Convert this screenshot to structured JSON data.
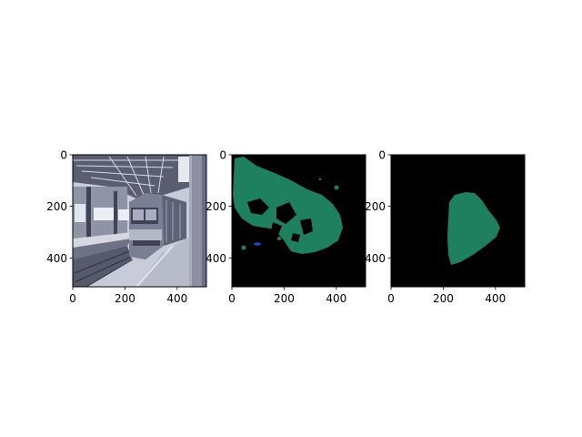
{
  "figure": {
    "background": "#ffffff",
    "panels": [
      {
        "name": "train-photo",
        "content": "grayscale photo of a train at a station platform under a steel roof",
        "colors": {
          "sky": "#e8e9ef",
          "roof": "#5a5e70",
          "train": "#7a7f93",
          "platform": "#b8bbc9",
          "rails": "#3f4355",
          "pillar": "#8c90a3"
        }
      },
      {
        "name": "segmentation-mask-a",
        "content": "segmentation mask: large green region with holes, small blue blob",
        "colors": {
          "background": "#000000",
          "mask": "#1f8060",
          "blob": "#1a4fc4"
        }
      },
      {
        "name": "segmentation-mask-b",
        "content": "segmentation mask: single green region shaped like the train front",
        "colors": {
          "background": "#000000",
          "mask": "#1f8060"
        }
      }
    ]
  },
  "chart_data": [
    {
      "type": "image",
      "title": "",
      "xlabel": "",
      "ylabel": "",
      "xlim": [
        0,
        512
      ],
      "ylim": [
        512,
        0
      ],
      "xticks": [
        "0",
        "200",
        "400"
      ],
      "yticks": [
        "0",
        "200",
        "400"
      ]
    },
    {
      "type": "image",
      "title": "",
      "xlabel": "",
      "ylabel": "",
      "xlim": [
        0,
        512
      ],
      "ylim": [
        512,
        0
      ],
      "xticks": [
        "0",
        "200",
        "400"
      ],
      "yticks": [
        "0",
        "200",
        "400"
      ]
    },
    {
      "type": "image",
      "title": "",
      "xlabel": "",
      "ylabel": "",
      "xlim": [
        0,
        512
      ],
      "ylim": [
        512,
        0
      ],
      "xticks": [
        "0",
        "200",
        "400"
      ],
      "yticks": [
        "0",
        "200",
        "400"
      ]
    }
  ]
}
